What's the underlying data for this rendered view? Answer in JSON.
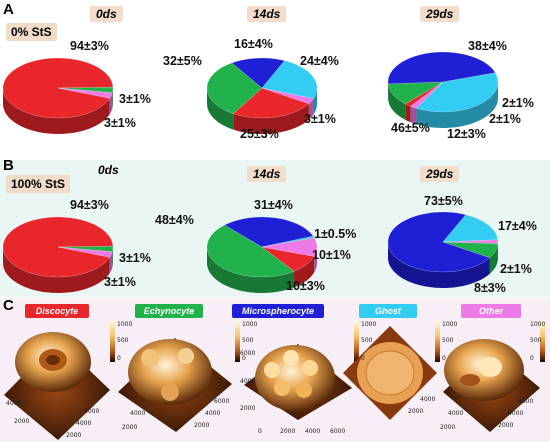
{
  "panel_a": {
    "label": "A",
    "condition": "0% StS",
    "time_labels": [
      "0ds",
      "14ds",
      "29ds"
    ],
    "percent_labels": {
      "0ds": [
        "94±3%",
        "3±1%",
        "3±1%"
      ],
      "14ds": [
        "32±5%",
        "16±4%",
        "24±4%",
        "3±1%",
        "25±3%"
      ],
      "29ds": [
        "38±4%",
        "2±1%",
        "2±1%",
        "12±3%",
        "46±5%"
      ]
    }
  },
  "panel_b": {
    "label": "B",
    "condition": "100% StS",
    "time_labels": [
      "0ds",
      "14ds",
      "29ds"
    ],
    "percent_labels": {
      "0ds": [
        "94±3%",
        "3±1%",
        "3±1%"
      ],
      "14ds": [
        "48±4%",
        "31±4%",
        "1±0.5%",
        "10±1%",
        "10±3%"
      ],
      "29ds": [
        "73±5%",
        "17±4%",
        "2±1%",
        "8±3%"
      ]
    }
  },
  "panel_c": {
    "label": "C",
    "legend": [
      {
        "label": "Discocyte",
        "color": "#e8262b"
      },
      {
        "label": "Echynocyte",
        "color": "#22b24c"
      },
      {
        "label": "Microspherocyte",
        "color": "#1f1fd6"
      },
      {
        "label": "Ghost",
        "color": "#33ccf2"
      },
      {
        "label": "Other",
        "color": "#ee7ae8"
      }
    ],
    "afm_images": [
      {
        "cell": "Discocyte",
        "colorbar_ticks": [
          "1000",
          "500",
          "0"
        ],
        "axis_ticks": [
          "4000",
          "2000",
          "6000",
          "4000",
          "2000"
        ]
      },
      {
        "cell": "Echynocyte",
        "colorbar_ticks": [
          "1000",
          "500",
          "0"
        ],
        "axis_ticks": [
          "6000",
          "4000",
          "2000",
          "4000",
          "2000"
        ]
      },
      {
        "cell": "Microspherocyte",
        "colorbar_ticks": [
          "1000",
          "500",
          "0"
        ],
        "axis_ticks": [
          "6000",
          "4000",
          "2000",
          "0",
          "2000",
          "4000",
          "6000"
        ]
      },
      {
        "cell": "Ghost",
        "colorbar_ticks": [
          "1000",
          "500",
          "0"
        ],
        "axis_ticks": [
          "4000",
          "2000"
        ]
      },
      {
        "cell": "Other",
        "colorbar_ticks": [
          "1000",
          "500",
          "0"
        ],
        "axis_ticks": [
          "6000",
          "4000",
          "2000",
          "4000",
          "2000"
        ]
      }
    ]
  },
  "chart_data": [
    {
      "type": "pie",
      "panel": "A",
      "title": "0ds",
      "categories": [
        "Discocyte",
        "Echynocyte",
        "Microspherocyte",
        "Ghost",
        "Other"
      ],
      "values": [
        94,
        3,
        0,
        0,
        3
      ],
      "errors": [
        3,
        1,
        0,
        0,
        1
      ]
    },
    {
      "type": "pie",
      "panel": "A",
      "title": "14ds",
      "categories": [
        "Discocyte",
        "Echynocyte",
        "Microspherocyte",
        "Ghost",
        "Other"
      ],
      "values": [
        25,
        32,
        16,
        24,
        3
      ],
      "errors": [
        3,
        5,
        4,
        4,
        1
      ]
    },
    {
      "type": "pie",
      "panel": "A",
      "title": "29ds",
      "categories": [
        "Discocyte",
        "Echynocyte",
        "Microspherocyte",
        "Ghost",
        "Other"
      ],
      "values": [
        2,
        12,
        46,
        38,
        2
      ],
      "errors": [
        1,
        3,
        5,
        4,
        1
      ]
    },
    {
      "type": "pie",
      "panel": "B",
      "title": "0ds",
      "categories": [
        "Discocyte",
        "Echynocyte",
        "Microspherocyte",
        "Ghost",
        "Other"
      ],
      "values": [
        94,
        3,
        0,
        0,
        3
      ],
      "errors": [
        3,
        1,
        0,
        0,
        1
      ]
    },
    {
      "type": "pie",
      "panel": "B",
      "title": "14ds",
      "categories": [
        "Discocyte",
        "Echynocyte",
        "Microspherocyte",
        "Ghost",
        "Other"
      ],
      "values": [
        10,
        48,
        31,
        1,
        10
      ],
      "errors": [
        3,
        4,
        4,
        0.5,
        1
      ]
    },
    {
      "type": "pie",
      "panel": "B",
      "title": "29ds",
      "categories": [
        "Discocyte",
        "Echynocyte",
        "Microspherocyte",
        "Ghost",
        "Other"
      ],
      "values": [
        0,
        8,
        73,
        17,
        2
      ],
      "errors": [
        0,
        3,
        5,
        4,
        1
      ]
    }
  ]
}
